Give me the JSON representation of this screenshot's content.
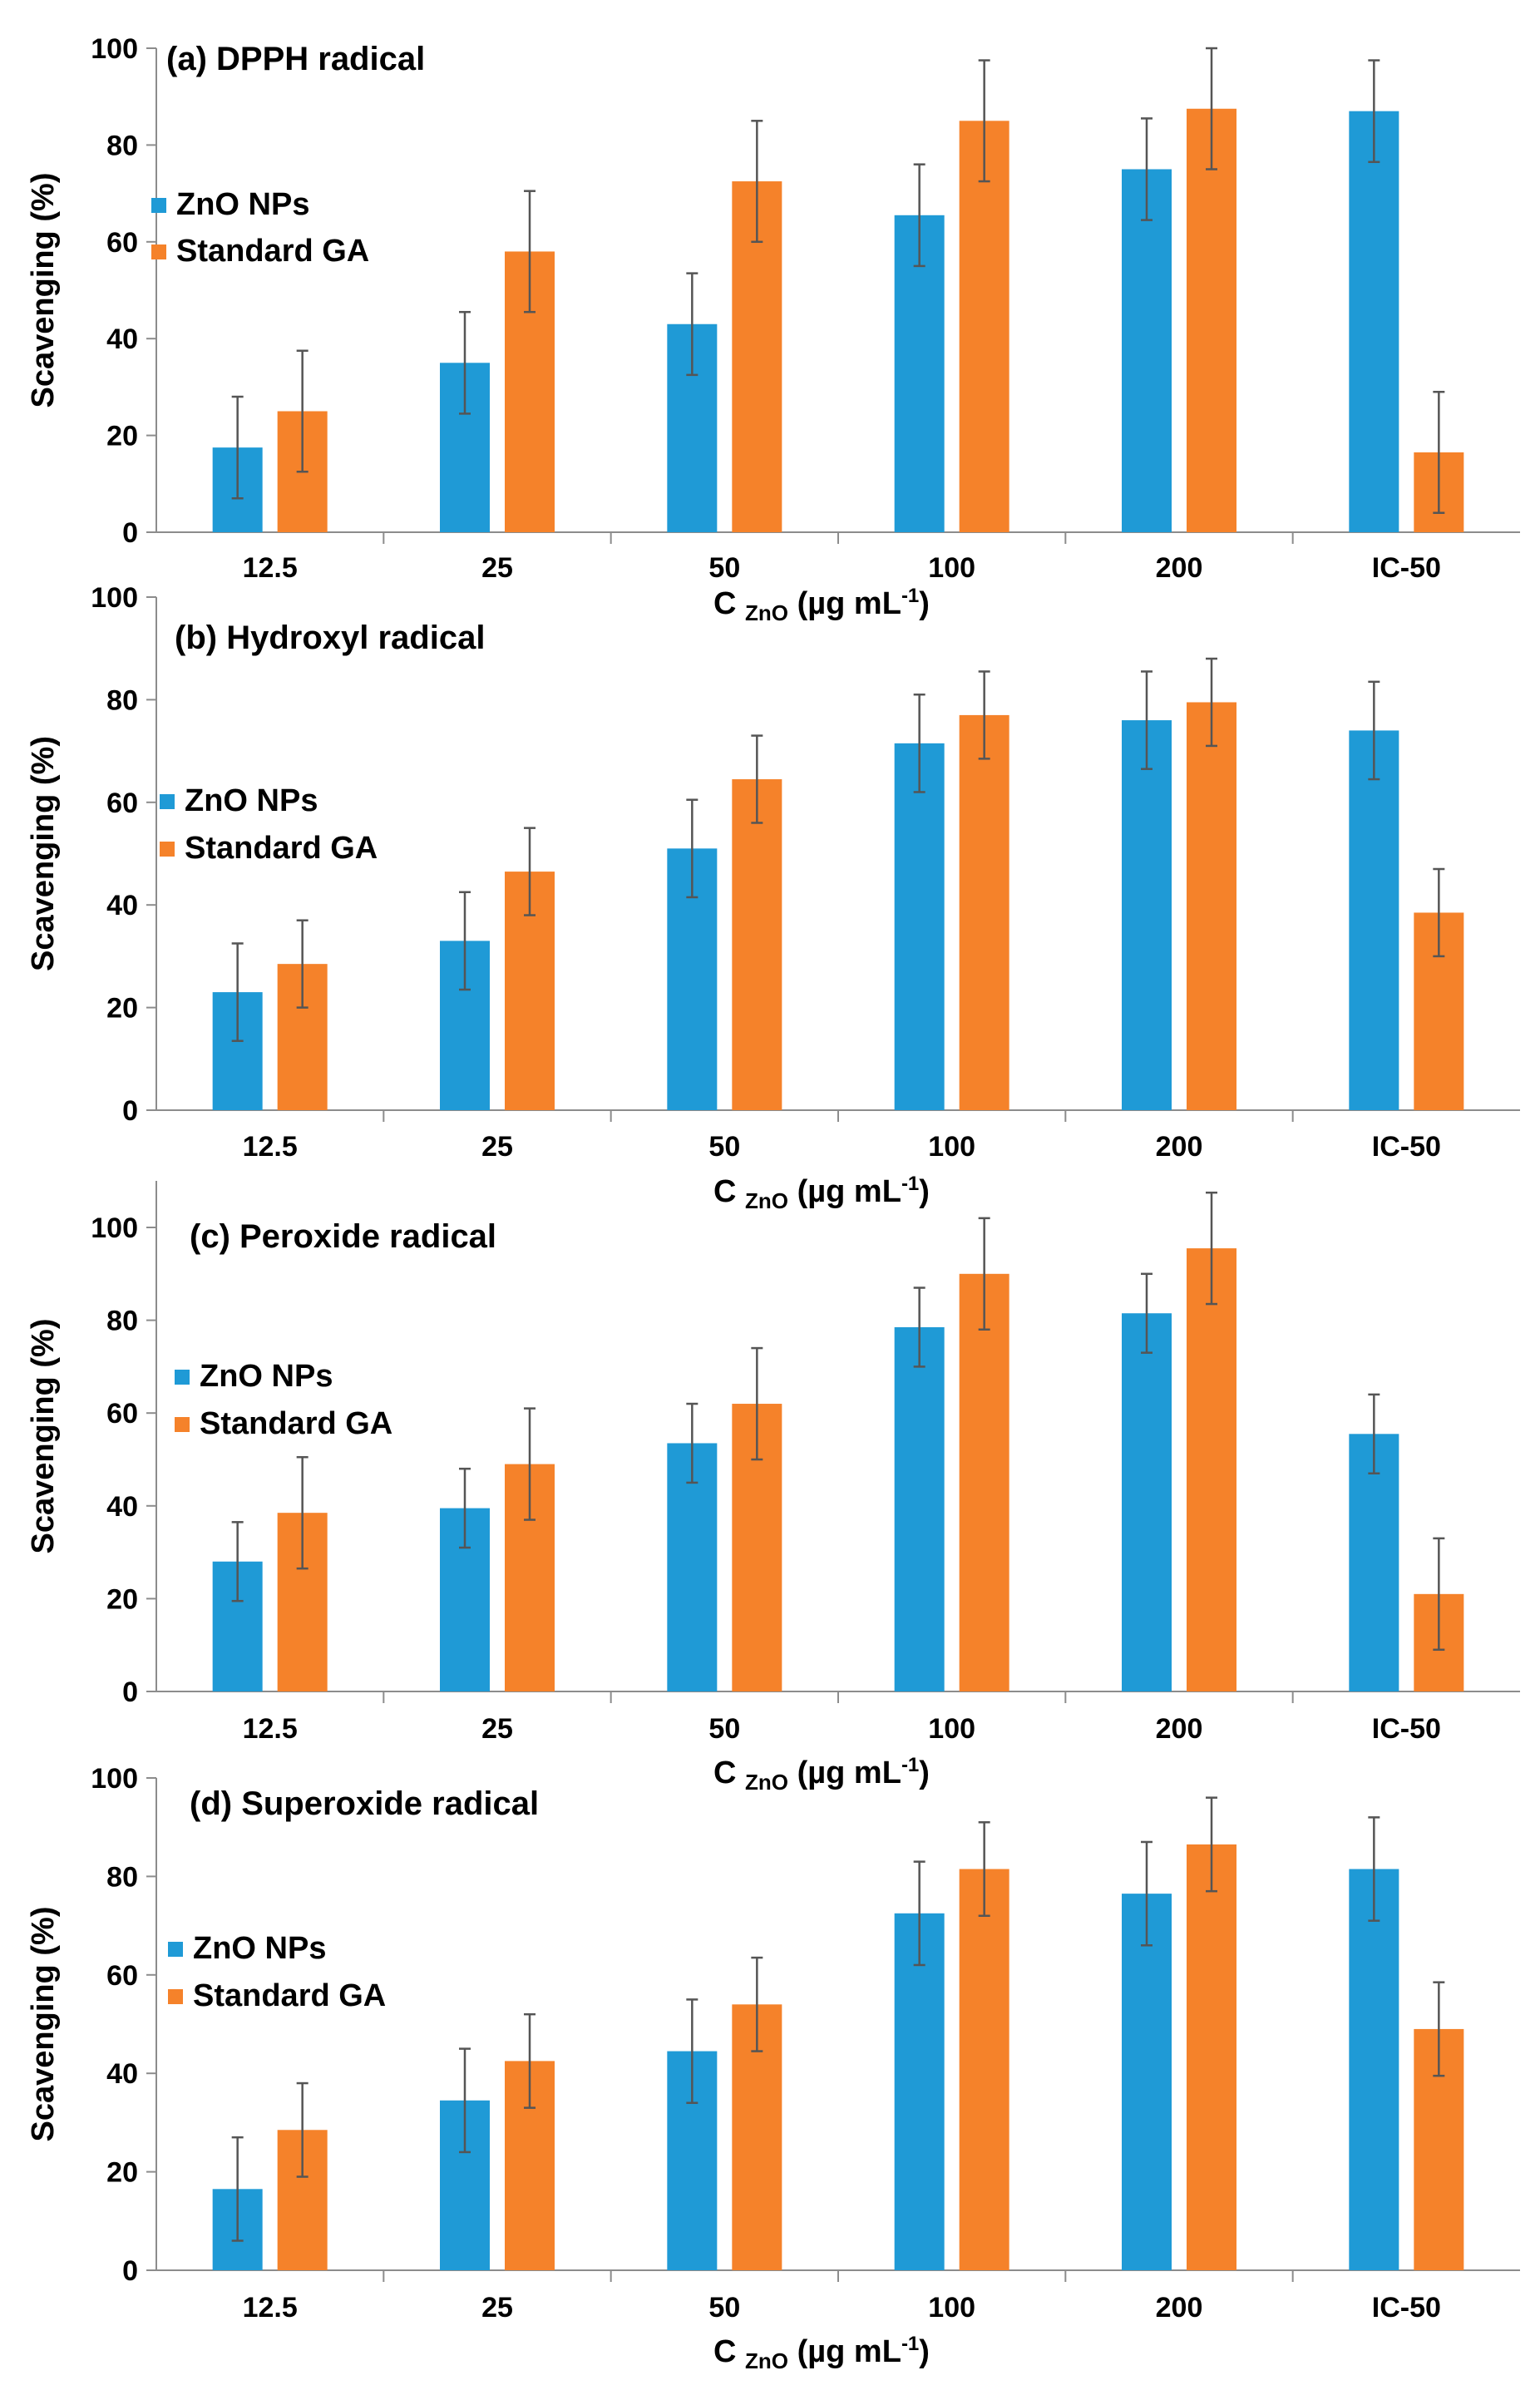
{
  "colors": {
    "zno": "#1f9ad6",
    "ga": "#f5822a",
    "error": "#555555",
    "axis": "#8c8c8c"
  },
  "chart_data": [
    {
      "type": "bar",
      "title": "(a) DPPH radical",
      "categories": [
        "12.5",
        "25",
        "50",
        "100",
        "200",
        "IC-50"
      ],
      "series": [
        {
          "name": "ZnO NPs",
          "values": [
            17.5,
            35,
            43,
            65.5,
            75,
            87
          ],
          "errors": [
            10.5,
            10.5,
            10.5,
            10.5,
            10.5,
            10.5
          ]
        },
        {
          "name": "Standard GA",
          "values": [
            25,
            58,
            72.5,
            85,
            87.5,
            16.5
          ],
          "errors": [
            12.5,
            12.5,
            12.5,
            12.5,
            12.5,
            12.5
          ]
        }
      ],
      "yticks": [
        0,
        20,
        40,
        60,
        80,
        100
      ],
      "ylim": [
        0,
        100
      ],
      "ylabel": "Scavenging (%)",
      "xlabel": {
        "main": "C",
        "sub": "ZnO",
        "rest": " (µg mL",
        "sup": "-1",
        "end": ")"
      }
    },
    {
      "type": "bar",
      "title": "(b) Hydroxyl radical",
      "categories": [
        "12.5",
        "25",
        "50",
        "100",
        "200",
        "IC-50"
      ],
      "series": [
        {
          "name": "ZnO NPs",
          "values": [
            23,
            33,
            51,
            71.5,
            76,
            74
          ],
          "errors": [
            9.5,
            9.5,
            9.5,
            9.5,
            9.5,
            9.5
          ]
        },
        {
          "name": "Standard GA",
          "values": [
            28.5,
            46.5,
            64.5,
            77,
            79.5,
            38.5
          ],
          "errors": [
            8.5,
            8.5,
            8.5,
            8.5,
            8.5,
            8.5
          ]
        }
      ],
      "yticks": [
        0,
        20,
        40,
        60,
        80,
        100
      ],
      "ylim": [
        0,
        100
      ],
      "ylabel": "Scavenging (%)",
      "xlabel": {
        "main": "C",
        "sub": "ZnO",
        "rest": " (µg mL",
        "sup": "-1",
        "end": ")"
      }
    },
    {
      "type": "bar",
      "title": "(c) Peroxide radical",
      "categories": [
        "12.5",
        "25",
        "50",
        "100",
        "200",
        "IC-50"
      ],
      "series": [
        {
          "name": "ZnO NPs",
          "values": [
            28,
            39.5,
            53.5,
            78.5,
            81.5,
            55.5
          ],
          "errors": [
            8.5,
            8.5,
            8.5,
            8.5,
            8.5,
            8.5
          ]
        },
        {
          "name": "Standard GA",
          "values": [
            38.5,
            49,
            62,
            90,
            95.5,
            21
          ],
          "errors": [
            12,
            12,
            12,
            12,
            12,
            12
          ]
        }
      ],
      "yticks": [
        0,
        20,
        40,
        60,
        80,
        100
      ],
      "ylim": [
        0,
        110
      ],
      "ylabel": "Scavenging  (%)",
      "xlabel": {
        "main": "C",
        "sub": "ZnO",
        "rest": " (µg mL",
        "sup": "-1",
        "end": ")"
      }
    },
    {
      "type": "bar",
      "title": "(d) Superoxide radical",
      "categories": [
        "12.5",
        "25",
        "50",
        "100",
        "200",
        "IC-50"
      ],
      "series": [
        {
          "name": "ZnO NPs",
          "values": [
            16.5,
            34.5,
            44.5,
            72.5,
            76.5,
            81.5
          ],
          "errors": [
            10.5,
            10.5,
            10.5,
            10.5,
            10.5,
            10.5
          ]
        },
        {
          "name": "Standard GA",
          "values": [
            28.5,
            42.5,
            54,
            81.5,
            86.5,
            49
          ],
          "errors": [
            9.5,
            9.5,
            9.5,
            9.5,
            9.5,
            9.5
          ]
        }
      ],
      "yticks": [
        0,
        20,
        40,
        60,
        80,
        100
      ],
      "ylim": [
        0,
        100
      ],
      "ylabel": "Scavenging (%)",
      "xlabel": {
        "main": "C",
        "sub": "ZnO",
        "rest": " (µg mL",
        "sup": "-1",
        "end": ")"
      }
    }
  ]
}
